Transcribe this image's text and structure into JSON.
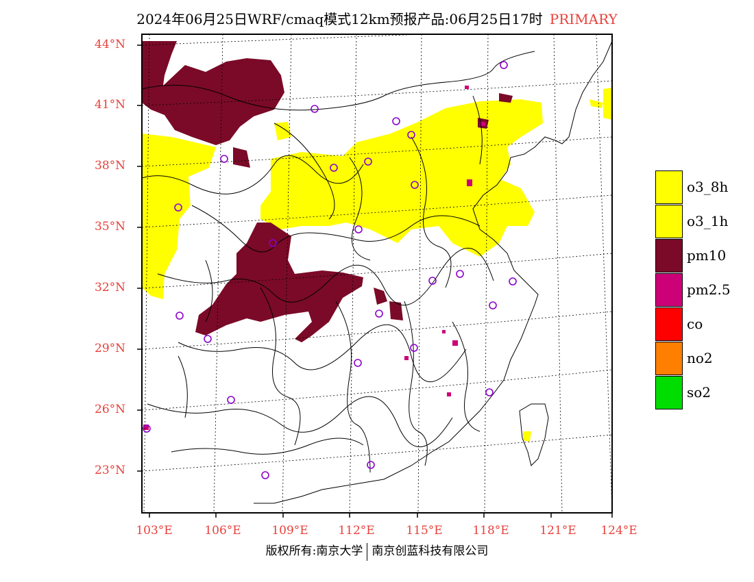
{
  "title": {
    "main": "2024年06月25日WRF/cmaq模式12km预报产品:06月25日17时",
    "tag": "PRIMARY"
  },
  "axes": {
    "lat_labels": [
      "44°N",
      "41°N",
      "38°N",
      "35°N",
      "32°N",
      "29°N",
      "26°N",
      "23°N"
    ],
    "lon_labels": [
      "103°E",
      "106°E",
      "109°E",
      "112°E",
      "115°E",
      "118°E",
      "121°E",
      "124°E"
    ]
  },
  "legend": [
    {
      "label": "o3_8h",
      "color": "#ffff00"
    },
    {
      "label": "o3_1h",
      "color": "#ffff00"
    },
    {
      "label": "pm10",
      "color": "#7a0a28"
    },
    {
      "label": "pm2.5",
      "color": "#cc0077"
    },
    {
      "label": "co",
      "color": "#ff0000"
    },
    {
      "label": "no2",
      "color": "#ff7f00"
    },
    {
      "label": "so2",
      "color": "#00dd00"
    }
  ],
  "copyright": {
    "left": "版权所有:南京大学",
    "right": "南京创蓝科技有限公司"
  },
  "colors": {
    "o3": "#ffff00",
    "pm10": "#7a0a28",
    "pm25": "#cc0077",
    "station_circle": "#8b00cc",
    "label_red": "#e8403a"
  }
}
